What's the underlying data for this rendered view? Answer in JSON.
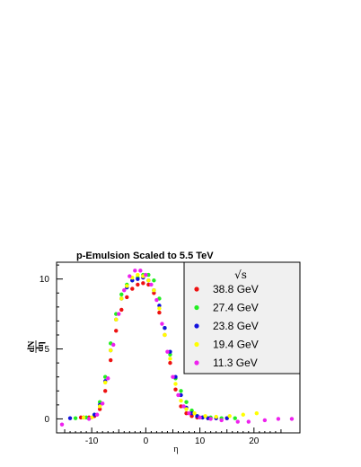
{
  "chart_data": {
    "type": "scatter",
    "title": "p-Emulsion Scaled to 5.5 TeV",
    "xlabel": "η",
    "ylabel_numerator": "dN",
    "ylabel_denominator": "dη",
    "xlim": [
      -16.5,
      28.5
    ],
    "ylim": [
      -1,
      11.2
    ],
    "x_ticks": [
      -10,
      0,
      10,
      20
    ],
    "y_ticks": [
      0,
      5,
      10
    ],
    "grid": false,
    "legend_position": "top-right",
    "legend_header": "√s",
    "series": [
      {
        "name": "38.8 GeV",
        "color": "#ee1111",
        "x": [
          -12,
          -10.5,
          -9.5,
          -8.5,
          -7.5,
          -6.5,
          -5.5,
          -4.5,
          -3.5,
          -2.5,
          -1.5,
          -0.5,
          0.5,
          1.5,
          2.5,
          3.5,
          4.5,
          5.5,
          6.5,
          7.5,
          8.5,
          9.5,
          10.5,
          11.5,
          13,
          15
        ],
        "y": [
          0.1,
          0.1,
          0.2,
          0.7,
          2.0,
          4.2,
          6.3,
          7.8,
          8.7,
          9.3,
          9.6,
          9.7,
          9.6,
          9.0,
          7.6,
          6.0,
          4.0,
          2.1,
          0.9,
          0.4,
          0.2,
          0.1,
          0.1,
          0.05,
          0.05,
          0.05
        ]
      },
      {
        "name": "27.4 GeV",
        "color": "#22ee22",
        "x": [
          -13,
          -11,
          -9.5,
          -8.5,
          -7.5,
          -6.5,
          -5.5,
          -4.5,
          -3.5,
          -2.5,
          -1.5,
          -0.5,
          0.5,
          1.5,
          2.5,
          3.5,
          4.5,
          5.5,
          6.5,
          7.5,
          8.5,
          9.5,
          10.5,
          12,
          14,
          16.5
        ],
        "y": [
          0.05,
          0.1,
          0.3,
          1.2,
          3.0,
          5.4,
          7.5,
          8.9,
          9.6,
          9.9,
          10.1,
          10.3,
          10.3,
          9.9,
          8.6,
          6.5,
          4.6,
          2.9,
          2.0,
          1.2,
          0.6,
          0.2,
          0.1,
          0.1,
          0.05,
          0.05
        ]
      },
      {
        "name": "23.8 GeV",
        "color": "#1111dd",
        "x": [
          -14,
          -11.5,
          -9.5,
          -8.5,
          -7.5,
          -6.5,
          -5.5,
          -4.5,
          -3.5,
          -2.5,
          -1.5,
          -0.5,
          0.5,
          1.5,
          2.5,
          3.5,
          4.5,
          5.5,
          6.5,
          7.5,
          8.5,
          9.5,
          10.5,
          11.5,
          13,
          15
        ],
        "y": [
          0.05,
          0.1,
          0.3,
          1.0,
          2.7,
          4.9,
          7.1,
          8.6,
          9.4,
          9.9,
          10.0,
          10.1,
          9.9,
          9.2,
          8.1,
          6.5,
          4.8,
          3.0,
          1.7,
          0.8,
          0.4,
          0.2,
          0.1,
          0.05,
          0.05,
          0.05
        ]
      },
      {
        "name": "19.4 GeV",
        "color": "#ffff00",
        "x": [
          -11.5,
          -10,
          -8.5,
          -7.5,
          -6.5,
          -5.5,
          -4.5,
          -3.5,
          -2.5,
          -1.5,
          -0.5,
          0.5,
          1.5,
          2.5,
          3.5,
          4.5,
          5.5,
          6.5,
          7.5,
          9,
          11,
          13,
          15.5,
          18,
          20.5
        ],
        "y": [
          0.1,
          0.1,
          0.9,
          2.6,
          4.9,
          7.1,
          8.6,
          9.5,
          10.1,
          10.3,
          10.2,
          9.9,
          9.2,
          7.9,
          6.0,
          4.3,
          2.5,
          1.3,
          0.7,
          0.4,
          0.2,
          0.15,
          0.2,
          0.3,
          0.4
        ]
      },
      {
        "name": "11.3 GeV",
        "color": "#ee22ee",
        "x": [
          -15.5,
          -10.5,
          -9,
          -8,
          -7,
          -6,
          -5,
          -4,
          -3,
          -2,
          -1,
          0,
          1,
          2,
          3,
          4,
          5,
          6,
          7,
          8,
          10,
          12,
          14,
          17,
          19,
          22,
          24.5,
          27
        ],
        "y": [
          -0.4,
          0.0,
          0.3,
          1.1,
          2.9,
          5.3,
          7.5,
          9.2,
          10.2,
          10.6,
          10.6,
          10.3,
          9.6,
          8.5,
          6.8,
          4.8,
          3.0,
          1.7,
          0.9,
          0.4,
          0.1,
          0.0,
          -0.1,
          -0.2,
          -0.2,
          -0.1,
          0.0,
          0.0
        ]
      }
    ]
  }
}
